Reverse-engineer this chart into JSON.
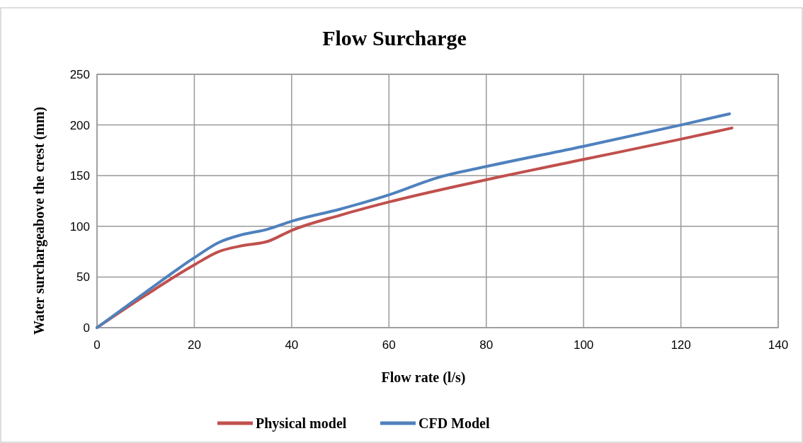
{
  "chart_data": {
    "type": "line",
    "title": "Flow Surcharge",
    "xlabel": "Flow rate (l/s)",
    "ylabel": "Water surchargeabove the crest (mm)",
    "xlim": [
      0,
      140
    ],
    "xticks": [
      0,
      20,
      40,
      60,
      80,
      100,
      120,
      140
    ],
    "ylim": [
      0,
      250
    ],
    "yticks": [
      0,
      50,
      100,
      150,
      200,
      250
    ],
    "grid": true,
    "legend": "bottom",
    "marker": "none",
    "line_style": "solid",
    "series": [
      {
        "name": "Physical model",
        "color": "#c0504d",
        "x": [
          0,
          10,
          20,
          25,
          30,
          35,
          40,
          50,
          60,
          80,
          100,
          120,
          130.5
        ],
        "values": [
          0,
          32,
          62,
          75,
          81,
          85,
          96,
          111,
          124,
          146,
          166,
          186,
          197
        ]
      },
      {
        "name": "CFD Model",
        "color": "#4f81bd",
        "x": [
          0,
          10,
          20,
          25,
          30,
          35,
          40,
          50,
          60,
          70,
          80,
          100,
          120,
          130
        ],
        "values": [
          0,
          35,
          69,
          84,
          92,
          97,
          105,
          117,
          131,
          148,
          159,
          179,
          200,
          211
        ]
      }
    ]
  }
}
